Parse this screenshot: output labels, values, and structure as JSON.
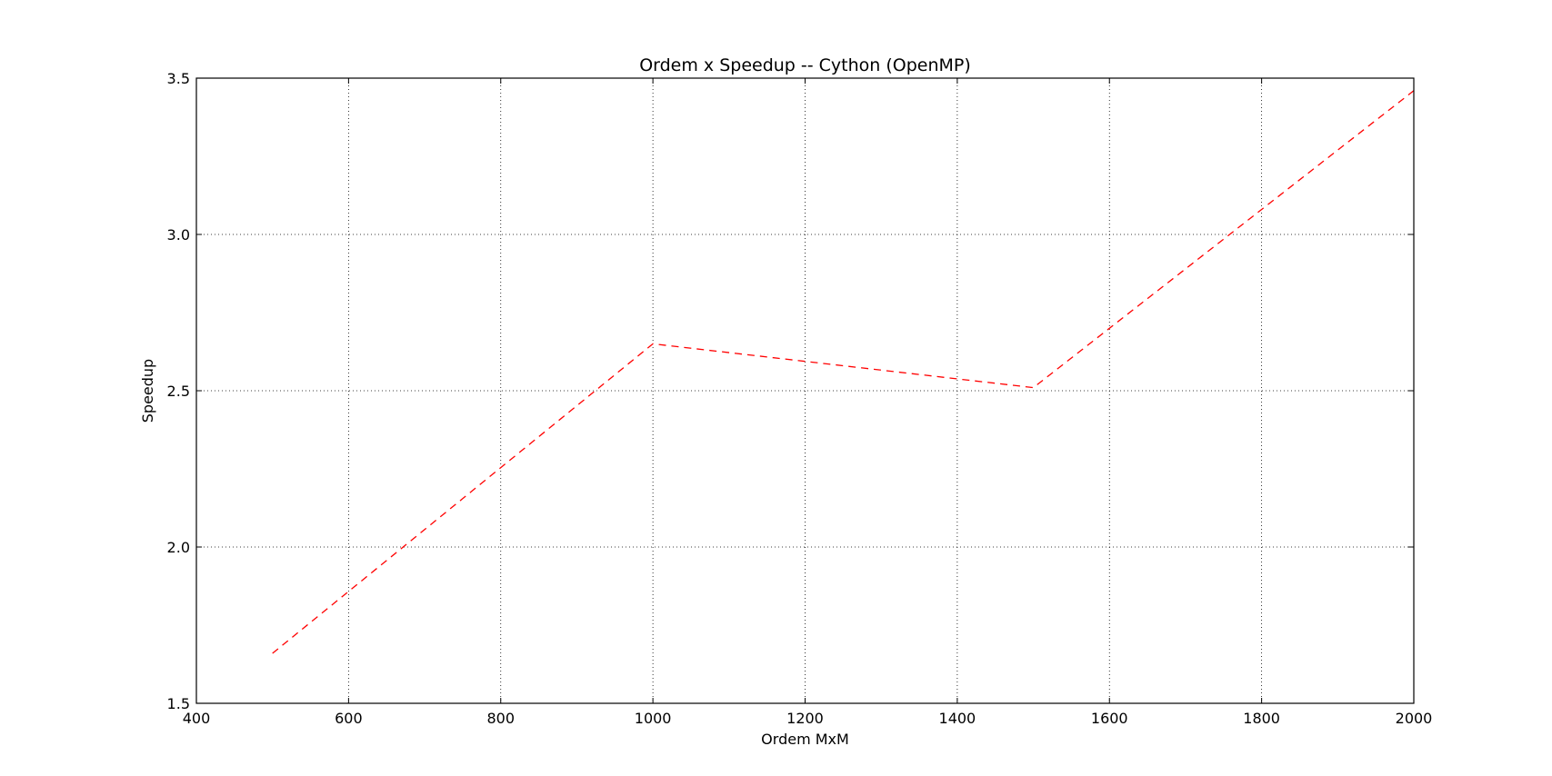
{
  "chart_data": {
    "type": "line",
    "title": "Ordem x Speedup -- Cython (OpenMP)",
    "xlabel": "Ordem MxM",
    "ylabel": "Speedup",
    "xlim": [
      400,
      2000
    ],
    "ylim": [
      1.5,
      3.5
    ],
    "xticks": [
      400,
      600,
      800,
      1000,
      1200,
      1400,
      1600,
      1800,
      2000
    ],
    "yticks": [
      1.5,
      2.0,
      2.5,
      3.0,
      3.5
    ],
    "xtick_labels": [
      "400",
      "600",
      "800",
      "1000",
      "1200",
      "1400",
      "1600",
      "1800",
      "2000"
    ],
    "ytick_labels": [
      "1.5",
      "2.0",
      "2.5",
      "3.0",
      "3.5"
    ],
    "grid": true,
    "series": [
      {
        "x": [
          500,
          1000,
          1500,
          2000
        ],
        "y": [
          1.66,
          2.65,
          2.51,
          3.46
        ],
        "color": "#ff0000",
        "linestyle": "dashed"
      }
    ]
  }
}
